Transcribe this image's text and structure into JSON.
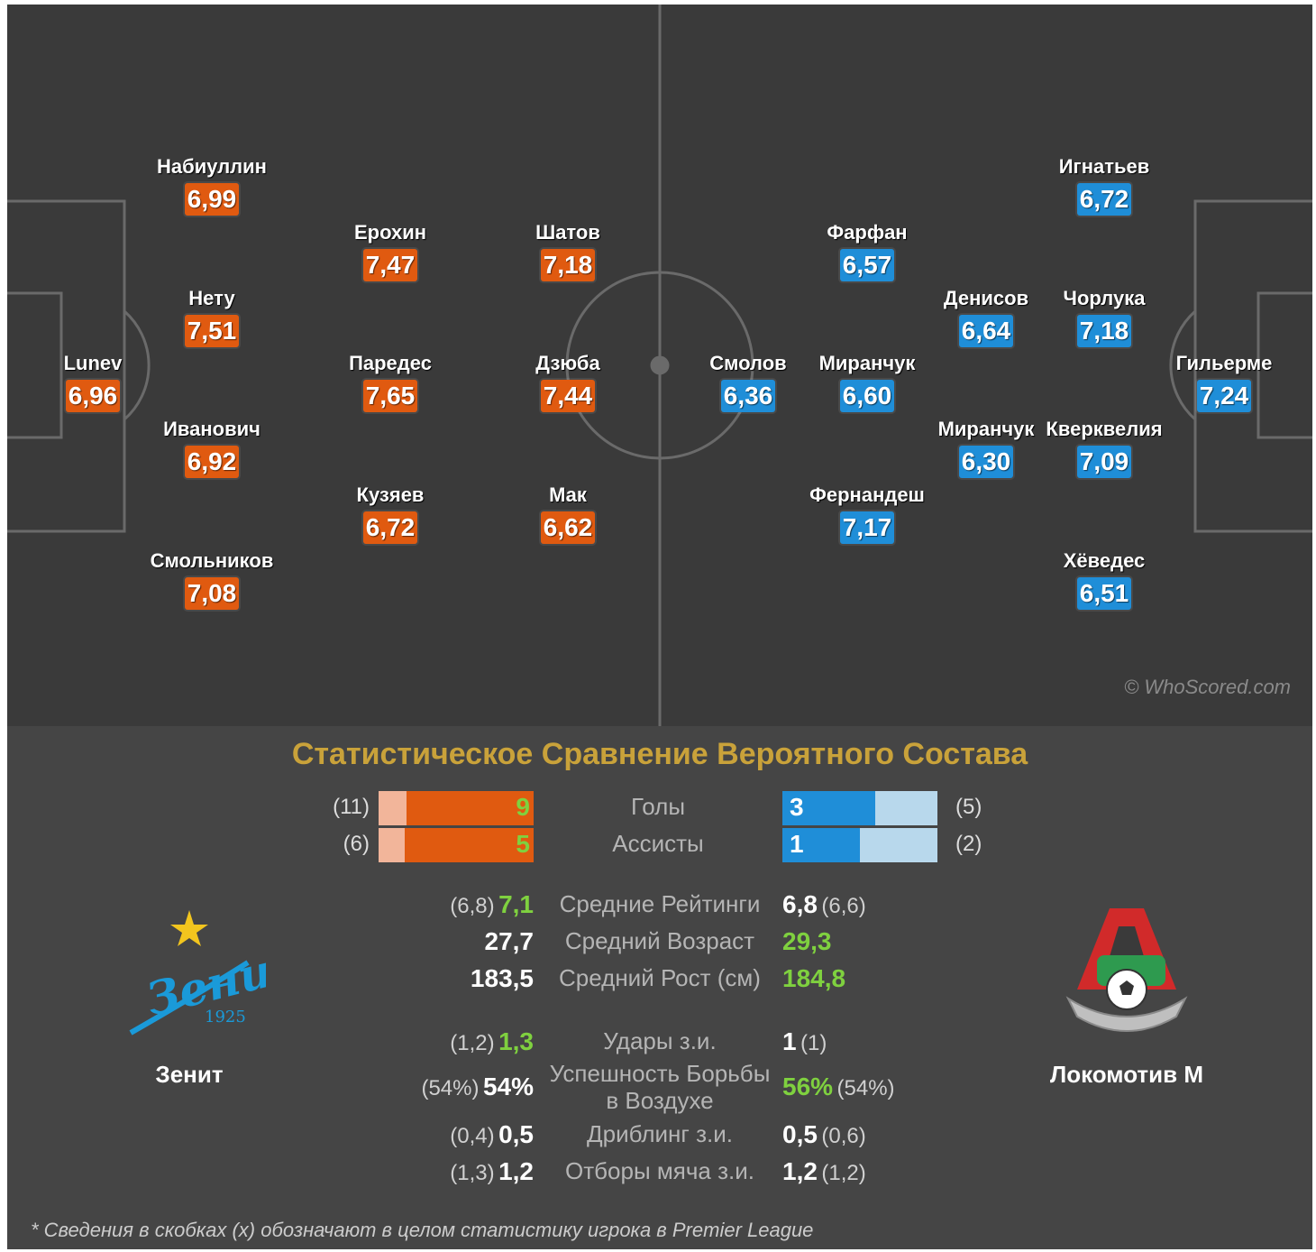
{
  "watermark": "© WhoScored.com",
  "colors": {
    "home": "#e05a10",
    "away": "#1f8ed8",
    "title": "#c9a23a",
    "better": "#7fd13f"
  },
  "home_players": [
    {
      "name": "Lunev",
      "rating": "6,96"
    },
    {
      "name": "Набиуллин",
      "rating": "6,99"
    },
    {
      "name": "Нету",
      "rating": "7,51"
    },
    {
      "name": "Иванович",
      "rating": "6,92"
    },
    {
      "name": "Смольников",
      "rating": "7,08"
    },
    {
      "name": "Ерохин",
      "rating": "7,47"
    },
    {
      "name": "Паредес",
      "rating": "7,65"
    },
    {
      "name": "Кузяев",
      "rating": "6,72"
    },
    {
      "name": "Шатов",
      "rating": "7,18"
    },
    {
      "name": "Дзюба",
      "rating": "7,44"
    },
    {
      "name": "Мак",
      "rating": "6,62"
    }
  ],
  "away_players": [
    {
      "name": "Гильерме",
      "rating": "7,24"
    },
    {
      "name": "Игнатьев",
      "rating": "6,72"
    },
    {
      "name": "Чорлука",
      "rating": "7,18"
    },
    {
      "name": "Кверквелия",
      "rating": "7,09"
    },
    {
      "name": "Хёведес",
      "rating": "6,51"
    },
    {
      "name": "Денисов",
      "rating": "6,64"
    },
    {
      "name": "Миранчук",
      "rating": "6,30"
    },
    {
      "name": "Фарфан",
      "rating": "6,57"
    },
    {
      "name": "Миранчук",
      "rating": "6,60"
    },
    {
      "name": "Фернандеш",
      "rating": "7,17"
    },
    {
      "name": "Смолов",
      "rating": "6,36"
    }
  ],
  "stats": {
    "title": "Статистическое Сравнение Вероятного Состава",
    "bars": [
      {
        "label": "Голы",
        "home_value": "9",
        "home_total": "(11)",
        "home_fraction": 0.82,
        "away_value": "3",
        "away_total": "(5)",
        "away_fraction": 0.6
      },
      {
        "label": "Ассисты",
        "home_value": "5",
        "home_total": "(6)",
        "home_fraction": 0.83,
        "away_value": "1",
        "away_total": "(2)",
        "away_fraction": 0.5
      }
    ],
    "rows": [
      {
        "label": "Средние Рейтинги",
        "home_paren": "(6,8)",
        "home_value": "7,1",
        "home_better": true,
        "away_value": "6,8",
        "away_paren": "(6,6)",
        "away_better": false
      },
      {
        "label": "Средний Возраст",
        "home_paren": "",
        "home_value": "27,7",
        "home_better": false,
        "away_value": "29,3",
        "away_paren": "",
        "away_better": true
      },
      {
        "label": "Средний Рост (см)",
        "home_paren": "",
        "home_value": "183,5",
        "home_better": false,
        "away_value": "184,8",
        "away_paren": "",
        "away_better": true
      },
      {
        "label": "Удары з.и.",
        "home_paren": "(1,2)",
        "home_value": "1,3",
        "home_better": true,
        "away_value": "1",
        "away_paren": "(1)",
        "away_better": false
      },
      {
        "label": "Успешность Борьбы в Воздухе",
        "home_paren": "(54%)",
        "home_value": "54%",
        "home_better": false,
        "away_value": "56%",
        "away_paren": "(54%)",
        "away_better": true
      },
      {
        "label": "Дриблинг з.и.",
        "home_paren": "(0,4)",
        "home_value": "0,5",
        "home_better": false,
        "away_value": "0,5",
        "away_paren": "(0,6)",
        "away_better": false
      },
      {
        "label": "Отборы мяча з.и.",
        "home_paren": "(1,3)",
        "home_value": "1,2",
        "home_better": false,
        "away_value": "1,2",
        "away_paren": "(1,2)",
        "away_better": false
      }
    ],
    "home_team": {
      "name": "Зенит",
      "logo_text": "Зенит",
      "logo_year": "1925"
    },
    "away_team": {
      "name": "Локомотив М"
    },
    "footnote": "* Сведения в скобках (x) обозначают в целом статистику игрока в Premier League"
  }
}
